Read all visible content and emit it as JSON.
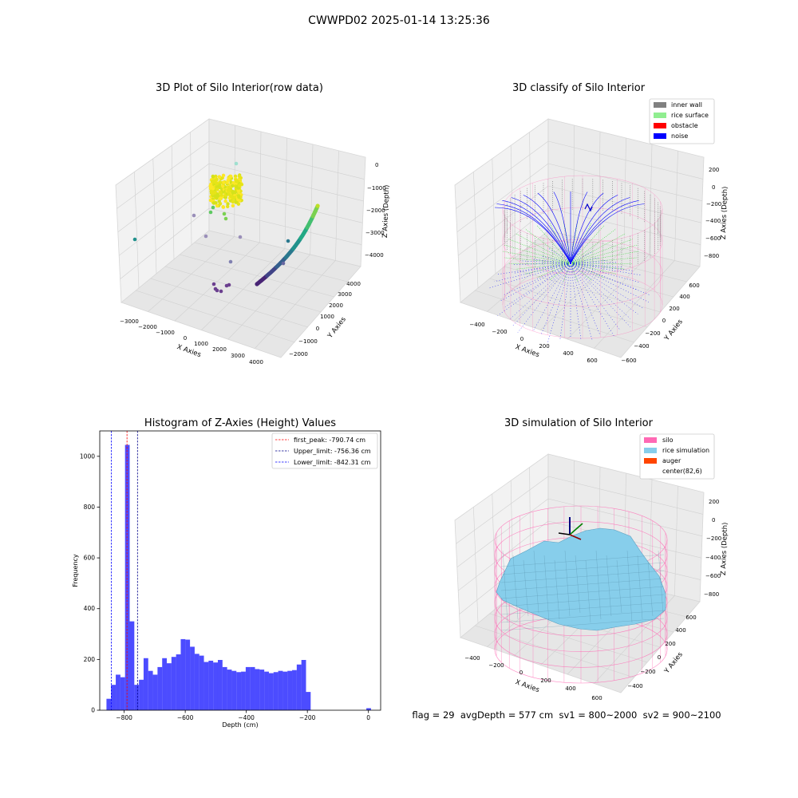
{
  "figure": {
    "suptitle": "CWWPD02 2025-01-14 13:25:36",
    "stats_text": "flag = 29  avgDepth = 577 cm  sv1 = 800~2000  sv2 = 900~2100"
  },
  "chart_data": [
    {
      "type": "scatter",
      "projection": "3d",
      "title": "3D Plot of Silo Interior(row data)",
      "xlabel": "X Axies",
      "ylabel": "Y Axies",
      "zlabel": "Z Axies (Depth)",
      "x_ticks": [
        "−3000",
        "−2000",
        "−1000",
        "0",
        "1000",
        "2000",
        "3000",
        "4000"
      ],
      "y_ticks": [
        "−2000",
        "−1000",
        "0",
        "1000",
        "2000",
        "3000",
        "4000"
      ],
      "z_ticks": [
        "−4000",
        "−3000",
        "−2000",
        "−1000",
        "0"
      ],
      "colormap": "viridis",
      "grid": true
    },
    {
      "type": "scatter",
      "projection": "3d",
      "title": "3D classify of Silo Interior",
      "xlabel": "X Axies",
      "ylabel": "Y Axies",
      "zlabel": "Z Axies (Depth)",
      "x_ticks": [
        "−400",
        "−200",
        "0",
        "200",
        "400",
        "600"
      ],
      "y_ticks": [
        "−600",
        "−400",
        "−200",
        "0",
        "200",
        "400",
        "600"
      ],
      "z_ticks": [
        "−800",
        "−600",
        "−400",
        "−200",
        "0",
        "200"
      ],
      "legend_position": "top-right",
      "series": [
        {
          "name": "inner wall",
          "color": "#808080"
        },
        {
          "name": "rice surface",
          "color": "#90ee90"
        },
        {
          "name": "obstacle",
          "color": "#ff0000"
        },
        {
          "name": "noise",
          "color": "#0000ff"
        }
      ],
      "grid": true
    },
    {
      "type": "bar",
      "title": "Histogram of Z-Axies (Height) Values",
      "xlabel": "Depth (cm)",
      "ylabel": "Frequency",
      "xlim": [
        -880,
        40
      ],
      "ylim": [
        0,
        1100
      ],
      "x_ticks": [
        -800,
        -600,
        -400,
        -200,
        0
      ],
      "y_ticks": [
        0,
        200,
        400,
        600,
        800,
        1000
      ],
      "x_tick_labels": [
        "−800",
        "−600",
        "−400",
        "−200",
        "0"
      ],
      "y_tick_labels": [
        "0",
        "200",
        "400",
        "600",
        "800",
        "1000"
      ],
      "bar_color": "#0000ff",
      "bins_start": -858,
      "bin_width": 15.2,
      "values": [
        45,
        100,
        140,
        130,
        1045,
        350,
        100,
        120,
        205,
        155,
        140,
        170,
        205,
        185,
        210,
        220,
        280,
        278,
        250,
        222,
        215,
        190,
        195,
        188,
        198,
        170,
        160,
        155,
        150,
        152,
        170,
        170,
        162,
        160,
        152,
        146,
        150,
        155,
        152,
        155,
        158,
        180,
        198,
        72,
        0,
        0,
        0,
        0,
        0,
        0,
        0,
        0,
        0,
        0,
        0,
        0,
        8
      ],
      "vlines": [
        {
          "label": "first_peak: -790.74 cm",
          "x": -790.74,
          "color": "#ff0000"
        },
        {
          "label": "Upper_limit: -756.36 cm",
          "x": -756.36,
          "color": "#00008b"
        },
        {
          "label": "Lower_limit: -842.31 cm",
          "x": -842.31,
          "color": "#0000ff"
        }
      ],
      "legend_position": "top-right"
    },
    {
      "type": "surface",
      "projection": "3d",
      "title": "3D simulation of Silo Interior",
      "xlabel": "X Axies",
      "ylabel": "Y Axies",
      "zlabel": "Z Axies (Depth)",
      "x_ticks": [
        "−400",
        "−200",
        "0",
        "200",
        "400",
        "600"
      ],
      "y_ticks": [
        "−400",
        "−200",
        "0",
        "200",
        "400",
        "600"
      ],
      "z_ticks": [
        "−800",
        "−600",
        "−400",
        "−200",
        "0",
        "200"
      ],
      "legend_position": "top-right",
      "series": [
        {
          "name": "silo",
          "color": "#ff69b4"
        },
        {
          "name": "rice simulation",
          "color": "#87ceeb"
        },
        {
          "name": "auger",
          "color": "#ff4500"
        },
        {
          "name": "center(82,6)",
          "color": "#ffffff"
        }
      ],
      "grid": true
    }
  ]
}
